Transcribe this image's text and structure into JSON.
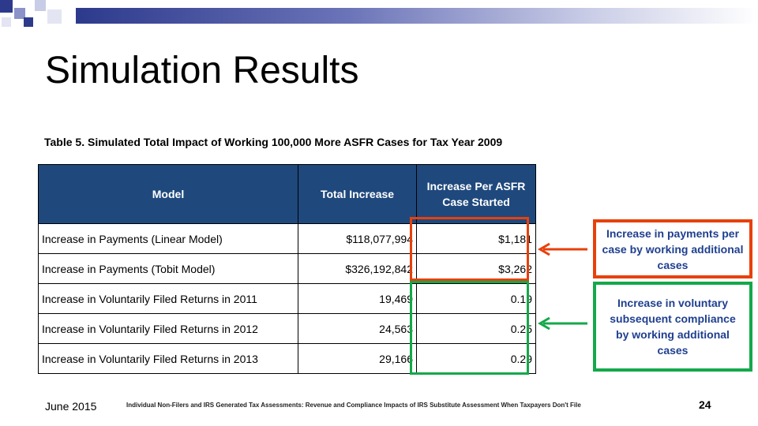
{
  "slide": {
    "title": "Simulation Results",
    "footer_date": "June 2015",
    "footer_text": "Individual Non-Filers and IRS Generated Tax Assessments:  Revenue and Compliance Impacts of IRS Substitute Assessment When Taxpayers Don't File",
    "page_number": "24"
  },
  "table": {
    "caption": "Table 5. Simulated Total Impact of Working 100,000 More ASFR Cases for Tax Year 2009",
    "headers": [
      "Model",
      "Total Increase",
      "Increase Per ASFR Case Started"
    ],
    "rows": [
      {
        "model": "Increase in Payments (Linear Model)",
        "total": "$118,077,994",
        "per_case": "$1,181"
      },
      {
        "model": "Increase in Payments (Tobit Model)",
        "total": "$326,192,842",
        "per_case": "$3,262"
      },
      {
        "model": "Increase in Voluntarily Filed Returns in 2011",
        "total": "19,469",
        "per_case": "0.19"
      },
      {
        "model": "Increase in Voluntarily Filed Returns in 2012",
        "total": "24,563",
        "per_case": "0.25"
      },
      {
        "model": "Increase in Voluntarily Filed Returns in 2013",
        "total": "29,166",
        "per_case": "0.29"
      }
    ]
  },
  "callouts": {
    "red": "Increase in payments per case by working additional cases",
    "green": "Increase in voluntary subsequent compliance by working additional cases"
  },
  "colors": {
    "header_bg": "#1f497d",
    "red": "#e8400c",
    "green": "#14a84b",
    "callout_text": "#1f3f8f"
  }
}
